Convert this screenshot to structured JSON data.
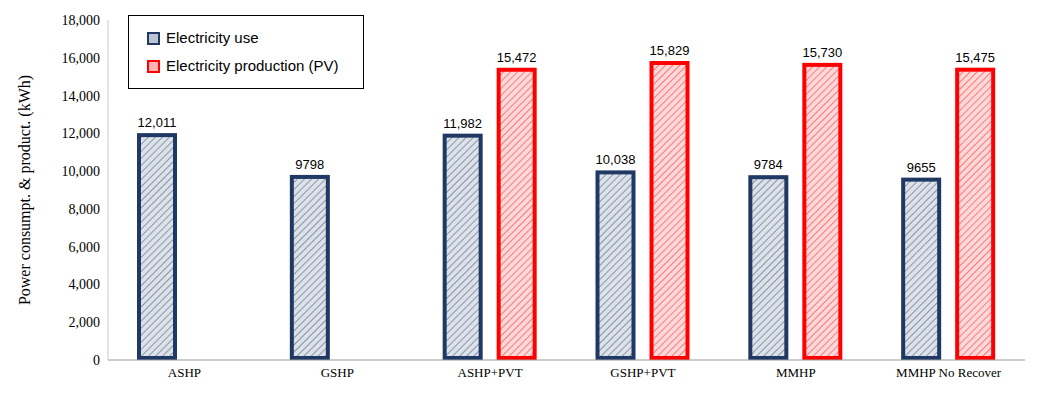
{
  "chart_data": {
    "type": "bar",
    "y_label": "Power consumpt. & product. (kWh)",
    "categories": [
      "ASHP",
      "GSHP",
      "ASHP+PVT",
      "GSHP+PVT",
      "MMHP",
      "MMHP No Recover"
    ],
    "series": [
      {
        "name": "Electricity use",
        "color": "#1f3864",
        "values": [
          12011,
          9798,
          11982,
          10038,
          9784,
          9655
        ],
        "value_labels": [
          "12,011",
          "9798",
          "11,982",
          "10,038",
          "9784",
          "9655"
        ]
      },
      {
        "name": "Electricity production (PV)",
        "color": "#ff0000",
        "values": [
          null,
          null,
          15472,
          15829,
          15730,
          15475
        ],
        "value_labels": [
          null,
          null,
          "15,472",
          "15,829",
          "15,730",
          "15,475"
        ]
      }
    ],
    "ylim": [
      0,
      18000
    ],
    "yticks": [
      0,
      {
        "value": 2000,
        "label": "2,000"
      },
      {
        "value": 4000,
        "label": "4,000"
      },
      {
        "value": 6000,
        "label": "6,000"
      },
      {
        "value": 8000,
        "label": "8,000"
      },
      {
        "value": 10000,
        "label": "10,000"
      },
      {
        "value": 12000,
        "label": "12,000"
      },
      {
        "value": 14000,
        "label": "14,000"
      },
      {
        "value": 16000,
        "label": "16,000"
      },
      {
        "value": 18000,
        "label": "18,000"
      }
    ],
    "grid": false,
    "legend": "upper left",
    "data_labels": true
  }
}
